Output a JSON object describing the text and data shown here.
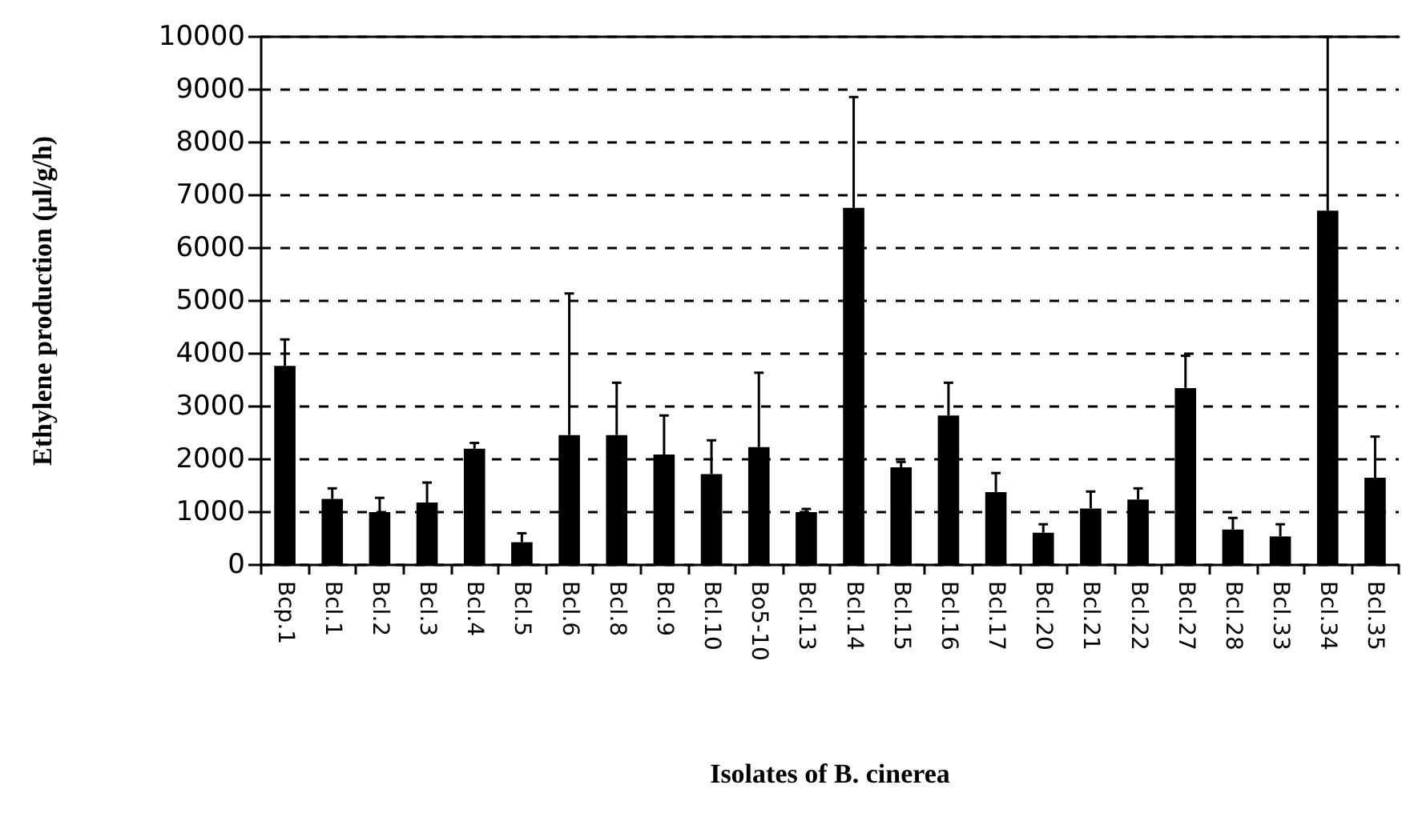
{
  "chart_data": {
    "type": "bar",
    "xlabel": "Isolates of B. cinerea",
    "ylabel": "Ethylene production (µl/g/h)",
    "categories": [
      "Bcp.1",
      "Bcl.1",
      "Bcl.2",
      "Bcl.3",
      "Bcl.4",
      "Bcl.5",
      "Bcl.6",
      "Bcl.8",
      "Bcl.9",
      "Bcl.10",
      "Bo5-10",
      "Bcl.13",
      "Bcl.14",
      "Bcl.15",
      "Bcl.16",
      "Bcl.17",
      "Bcl.20",
      "Bcl.21",
      "Bcl.22",
      "Bcl.27",
      "Bcl.28",
      "Bcl.33",
      "Bcl.34",
      "Bcl.35"
    ],
    "values": [
      3770,
      1250,
      1000,
      1180,
      2200,
      430,
      2460,
      2460,
      2090,
      1720,
      2230,
      1000,
      6760,
      1850,
      2830,
      1380,
      610,
      1070,
      1240,
      3350,
      670,
      540,
      6710,
      1650
    ],
    "errors": [
      [
        3770,
        4270
      ],
      [
        1250,
        1450
      ],
      [
        1000,
        1270
      ],
      [
        1180,
        1560
      ],
      [
        2200,
        2310
      ],
      [
        430,
        600
      ],
      [
        2460,
        5140
      ],
      [
        2460,
        3450
      ],
      [
        2090,
        2830
      ],
      [
        1720,
        2360
      ],
      [
        2230,
        3640
      ],
      [
        1000,
        1060
      ],
      [
        6760,
        8860
      ],
      [
        1850,
        1950
      ],
      [
        2830,
        3450
      ],
      [
        1380,
        1740
      ],
      [
        610,
        770
      ],
      [
        1070,
        1390
      ],
      [
        1240,
        1450
      ],
      [
        3350,
        3960
      ],
      [
        670,
        890
      ],
      [
        540,
        770
      ],
      [
        6710,
        10000
      ],
      [
        1650,
        2430
      ]
    ],
    "color": "#000000",
    "ylim": [
      0,
      10000
    ],
    "yticks": [
      0,
      1000,
      2000,
      3000,
      4000,
      5000,
      6000,
      7000,
      8000,
      9000,
      10000
    ],
    "grid": "y",
    "line_style": "dashed"
  }
}
